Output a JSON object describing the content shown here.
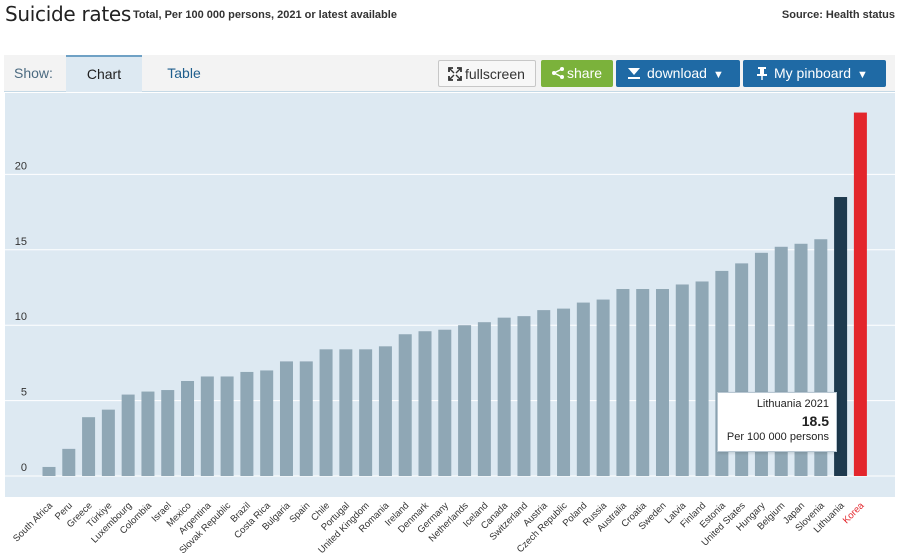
{
  "header": {
    "title": "Suicide rates",
    "subtitle": "Total, Per 100 000 persons, 2021 or latest available",
    "source": "Source: Health status"
  },
  "toolbar": {
    "show_label": "Show:",
    "tab_chart": "Chart",
    "tab_table": "Table",
    "fullscreen_label": "fullscreen",
    "share_label": "share",
    "download_label": "download",
    "pinboard_label": "My pinboard"
  },
  "tooltip": {
    "line1": "Lithuania 2021",
    "line2": "18.5",
    "line3": "Per 100 000 persons"
  },
  "colors": {
    "bar": "#8fa7b5",
    "highlight": "#1e3a4e",
    "korea": "#e3262c",
    "plot_bg": "#dde9f2"
  },
  "chart_data": {
    "type": "bar",
    "title": "Suicide rates",
    "ylabel": "Per 100 000 persons",
    "ylim": [
      0,
      24
    ],
    "yticks": [
      0,
      5,
      10,
      15,
      20
    ],
    "categories": [
      "South Africa",
      "Peru",
      "Greece",
      "Türkiye",
      "Luxembourg",
      "Colombia",
      "Israel",
      "Mexico",
      "Argentina",
      "Slovak Republic",
      "Brazil",
      "Costa Rica",
      "Bulgaria",
      "Spain",
      "Chile",
      "Portugal",
      "United Kingdom",
      "Romania",
      "Ireland",
      "Denmark",
      "Germany",
      "Netherlands",
      "Iceland",
      "Canada",
      "Switzerland",
      "Austria",
      "Czech Republic",
      "Poland",
      "Russia",
      "Australia",
      "Croatia",
      "Sweden",
      "Latvia",
      "Finland",
      "Estonia",
      "United States",
      "Hungary",
      "Belgium",
      "Japan",
      "Slovenia",
      "Lithuania",
      "Korea"
    ],
    "values": [
      0.6,
      1.8,
      3.9,
      4.4,
      5.4,
      5.6,
      5.7,
      6.3,
      6.6,
      6.6,
      6.9,
      7.0,
      7.6,
      7.6,
      8.4,
      8.4,
      8.4,
      8.6,
      9.4,
      9.6,
      9.7,
      10.0,
      10.2,
      10.5,
      10.6,
      11.0,
      11.1,
      11.5,
      11.7,
      12.4,
      12.4,
      12.4,
      12.7,
      12.9,
      13.6,
      14.1,
      14.8,
      15.2,
      15.4,
      15.7,
      18.5,
      24.1
    ],
    "highlight": "Lithuania",
    "emphasis": "Korea"
  }
}
